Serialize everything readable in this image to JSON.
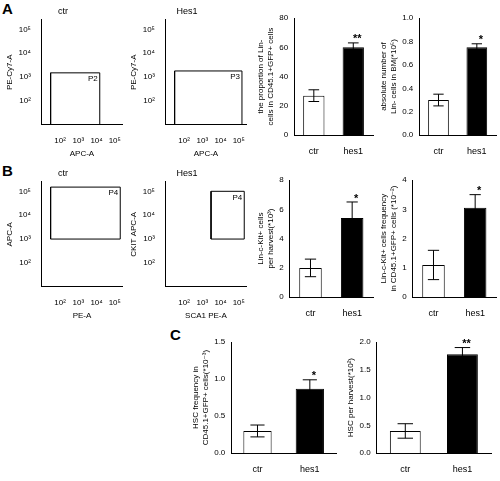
{
  "panel_labels": [
    "A",
    "B",
    "C"
  ],
  "chart_data": [
    {
      "type": "scatter",
      "title": "ctr",
      "x_label": "APC-A",
      "y_label": "PE-Cy7-A",
      "log": true,
      "xlim": [
        10,
        250000
      ],
      "ylim": [
        10,
        250000
      ],
      "xticks": [
        {
          "value": 100,
          "label": "10²"
        },
        {
          "value": 1000,
          "label": "10³"
        },
        {
          "value": 10000,
          "label": "10⁴"
        },
        {
          "value": 100000,
          "label": "10⁵"
        }
      ],
      "yticks": [
        {
          "value": 100,
          "label": "10²"
        },
        {
          "value": 1000,
          "label": "10³"
        },
        {
          "value": 10000,
          "label": "10⁴"
        },
        {
          "value": 100000,
          "label": "10⁵"
        }
      ],
      "gates": [
        {
          "name": "P2",
          "x": [
            30,
            15000
          ],
          "y": [
            10,
            1500
          ]
        }
      ]
    },
    {
      "type": "scatter",
      "title": "Hes1",
      "x_label": "APC-A",
      "y_label": "PE-Cy7-A",
      "log": true,
      "xlim": [
        10,
        250000
      ],
      "ylim": [
        10,
        250000
      ],
      "xticks": [
        {
          "value": 100,
          "label": "10²"
        },
        {
          "value": 1000,
          "label": "10³"
        },
        {
          "value": 10000,
          "label": "10⁴"
        },
        {
          "value": 100000,
          "label": "10⁵"
        }
      ],
      "yticks": [
        {
          "value": 100,
          "label": "10²"
        },
        {
          "value": 1000,
          "label": "10³"
        },
        {
          "value": 10000,
          "label": "10⁴"
        },
        {
          "value": 100000,
          "label": "10⁵"
        }
      ],
      "gates": [
        {
          "name": "P3",
          "x": [
            30,
            150000
          ],
          "y": [
            10,
            1800
          ]
        }
      ]
    },
    {
      "type": "bar",
      "y_label": "the proportion of Lin- cells in CD45.1+GFP+ cells",
      "categories": [
        "ctr",
        "hes1"
      ],
      "values": [
        27,
        60
      ],
      "errors": [
        4,
        3
      ],
      "colors": [
        "#ffffff",
        "#000000"
      ],
      "ylim": [
        0,
        80
      ],
      "yticks": [
        0,
        20,
        40,
        60,
        80
      ],
      "grid": false,
      "annotations": [
        {
          "category": "hes1",
          "text": "**"
        }
      ]
    },
    {
      "type": "bar",
      "y_label": "absolute number of Lin- cells in BM(*10⁵)",
      "categories": [
        "ctr",
        "hes1"
      ],
      "values": [
        0.3,
        0.75
      ],
      "errors": [
        0.05,
        0.03
      ],
      "colors": [
        "#ffffff",
        "#000000"
      ],
      "ylim": [
        0,
        1
      ],
      "yticks": [
        {
          "value": 0,
          "label": "0.0"
        },
        0.2,
        0.4,
        0.6,
        0.8,
        {
          "value": 1,
          "label": "1.0"
        }
      ],
      "grid": false,
      "annotations": [
        {
          "category": "hes1",
          "text": "*"
        }
      ]
    },
    {
      "type": "scatter",
      "title": "ctr",
      "x_label": "PE-A",
      "y_label": "APC-A",
      "log": true,
      "xlim": [
        10,
        250000
      ],
      "ylim": [
        10,
        250000
      ],
      "xticks": [
        {
          "value": 100,
          "label": "10²"
        },
        {
          "value": 1000,
          "label": "10³"
        },
        {
          "value": 10000,
          "label": "10⁴"
        },
        {
          "value": 100000,
          "label": "10⁵"
        }
      ],
      "yticks": [
        {
          "value": 100,
          "label": "10²"
        },
        {
          "value": 1000,
          "label": "10³"
        },
        {
          "value": 10000,
          "label": "10⁴"
        },
        {
          "value": 100000,
          "label": "10⁵"
        }
      ],
      "gates": [
        {
          "name": "P4",
          "x": [
            30,
            200000
          ],
          "y": [
            1000,
            150000
          ]
        }
      ]
    },
    {
      "type": "scatter",
      "title": "Hes1",
      "x_label": "SCA1 PE-A",
      "y_label": "CKIT APC-A",
      "log": true,
      "xlim": [
        10,
        250000
      ],
      "ylim": [
        10,
        250000
      ],
      "xticks": [
        {
          "value": 100,
          "label": "10²"
        },
        {
          "value": 1000,
          "label": "10³"
        },
        {
          "value": 10000,
          "label": "10⁴"
        },
        {
          "value": 100000,
          "label": "10⁵"
        }
      ],
      "yticks": [
        {
          "value": 100,
          "label": "10²"
        },
        {
          "value": 1000,
          "label": "10³"
        },
        {
          "value": 10000,
          "label": "10⁴"
        },
        {
          "value": 100000,
          "label": "10⁵"
        }
      ],
      "gates": [
        {
          "name": "P4",
          "x": [
            3000,
            200000
          ],
          "y": [
            1000,
            100000
          ]
        }
      ]
    },
    {
      "type": "bar",
      "y_label": "Lin-c-Kit+ cells per harvest(*10³)",
      "categories": [
        "ctr",
        "hes1"
      ],
      "values": [
        2,
        5.4
      ],
      "errors": [
        0.6,
        1.1
      ],
      "colors": [
        "#ffffff",
        "#000000"
      ],
      "ylim": [
        0,
        8
      ],
      "yticks": [
        0,
        2,
        4,
        6,
        8
      ],
      "grid": false,
      "annotations": [
        {
          "category": "hes1",
          "text": "*"
        }
      ]
    },
    {
      "type": "bar",
      "y_label": "Lin-c-Kit+ cells frequency in CD45.1+GFP+ cells (*10⁻²)",
      "categories": [
        "ctr",
        "hes1"
      ],
      "values": [
        1.1,
        3.05
      ],
      "errors": [
        0.5,
        0.45
      ],
      "colors": [
        "#ffffff",
        "#000000"
      ],
      "ylim": [
        0,
        4
      ],
      "yticks": [
        0,
        1,
        2,
        3,
        4
      ],
      "grid": false,
      "annotations": [
        {
          "category": "hes1",
          "text": "*"
        }
      ]
    },
    {
      "type": "bar",
      "y_label": "HSC frequency in CD45.1+GFP+ cells(*10⁻³)",
      "categories": [
        "ctr",
        "hes1"
      ],
      "values": [
        0.3,
        0.87
      ],
      "errors": [
        0.08,
        0.12
      ],
      "colors": [
        "#ffffff",
        "#000000"
      ],
      "ylim": [
        0,
        1.5
      ],
      "yticks": [
        {
          "value": 0,
          "label": "0.0"
        },
        0.5,
        {
          "value": 1,
          "label": "1.0"
        },
        1.5
      ],
      "grid": false,
      "annotations": [
        {
          "category": "hes1",
          "text": "*"
        }
      ]
    },
    {
      "type": "bar",
      "y_label": "HSC per harvest(*10²)",
      "categories": [
        "ctr",
        "hes1"
      ],
      "values": [
        0.4,
        1.78
      ],
      "errors": [
        0.13,
        0.12
      ],
      "colors": [
        "#ffffff",
        "#000000"
      ],
      "ylim": [
        0,
        2
      ],
      "yticks": [
        {
          "value": 0,
          "label": "0.0"
        },
        0.5,
        {
          "value": 1,
          "label": "1.0"
        },
        1.5,
        {
          "value": 2,
          "label": "2.0"
        }
      ],
      "grid": false,
      "annotations": [
        {
          "category": "hes1",
          "text": "**"
        }
      ]
    }
  ]
}
